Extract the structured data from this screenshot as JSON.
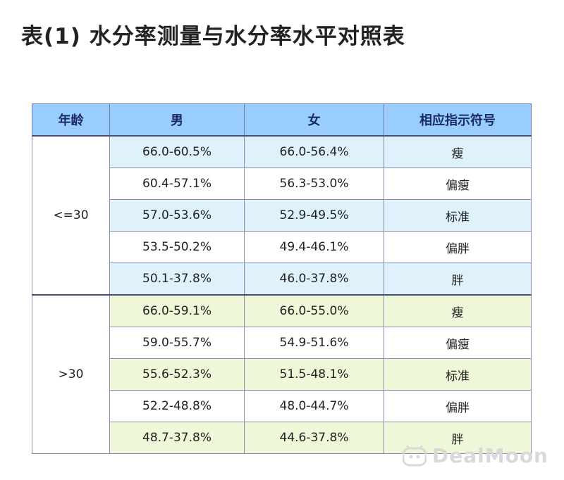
{
  "title": "表(1) 水分率测量与水分率水平对照表",
  "table": {
    "headers": {
      "age": "年龄",
      "male": "男",
      "female": "女",
      "symbol": "相应指示符号"
    },
    "groups": [
      {
        "age": "<=30",
        "rows": [
          {
            "male": "66.0-60.5%",
            "female": "66.0-56.4%",
            "symbol": "瘦"
          },
          {
            "male": "60.4-57.1%",
            "female": "56.3-53.0%",
            "symbol": "偏瘦"
          },
          {
            "male": "57.0-53.6%",
            "female": "52.9-49.5%",
            "symbol": "标准"
          },
          {
            "male": "53.5-50.2%",
            "female": "49.4-46.1%",
            "symbol": "偏胖"
          },
          {
            "male": "50.1-37.8%",
            "female": "46.0-37.8%",
            "symbol": "胖"
          }
        ]
      },
      {
        "age": ">30",
        "rows": [
          {
            "male": "66.0-59.1%",
            "female": "66.0-55.0%",
            "symbol": "瘦"
          },
          {
            "male": "59.0-55.7%",
            "female": "54.9-51.6%",
            "symbol": "偏瘦"
          },
          {
            "male": "55.6-52.3%",
            "female": "51.5-48.1%",
            "symbol": "标准"
          },
          {
            "male": "52.2-48.8%",
            "female": "48.0-44.7%",
            "symbol": "偏胖"
          },
          {
            "male": "48.7-37.8%",
            "female": "44.6-37.8%",
            "symbol": "胖"
          }
        ]
      }
    ]
  },
  "watermark": {
    "text": "DealMoon",
    "color": "#d9d9d9"
  },
  "colors": {
    "header_bg": "#99ccff",
    "group1_alt_bg": "#dff2fb",
    "group2_alt_bg": "#eef7d7",
    "border": "#8a8fb0"
  }
}
